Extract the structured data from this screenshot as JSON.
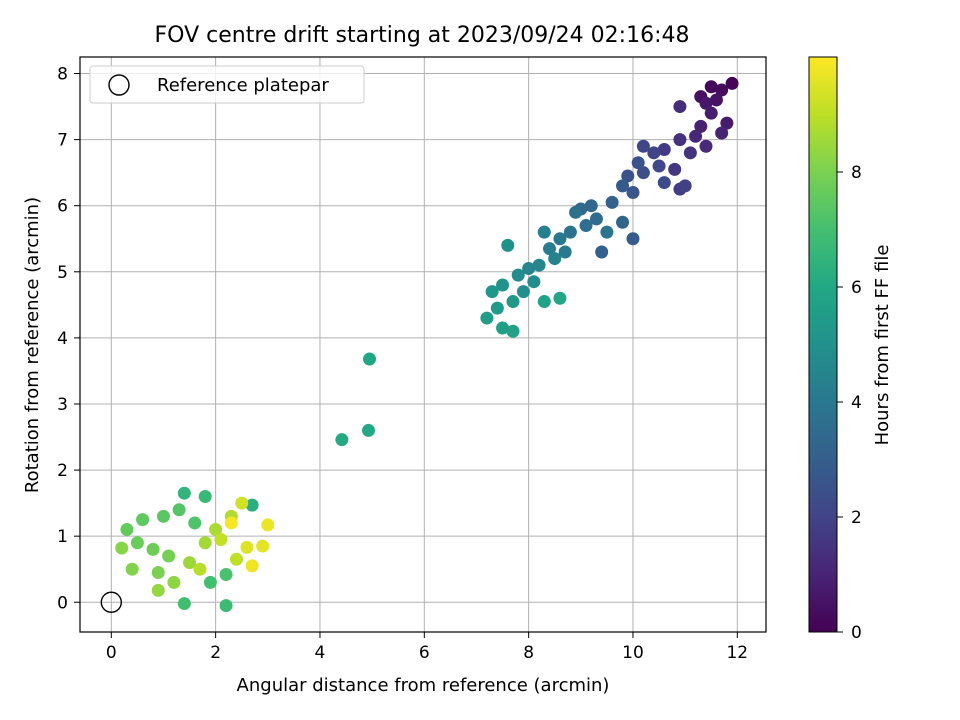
{
  "chart_data": {
    "type": "scatter",
    "title": "FOV centre drift starting at 2023/09/24 02:16:48",
    "xlabel": "Angular distance from reference (arcmin)",
    "ylabel": "Rotation from reference (arcmin)",
    "xlim": [
      -0.6,
      12.55
    ],
    "ylim": [
      -0.45,
      8.25
    ],
    "xticks": [
      0,
      2,
      4,
      6,
      8,
      10,
      12
    ],
    "yticks": [
      0,
      1,
      2,
      3,
      4,
      5,
      6,
      7,
      8
    ],
    "grid": true,
    "legend": {
      "placement": "top-left",
      "entries": [
        "Reference platepar"
      ]
    },
    "reference_point": {
      "x": 0,
      "y": 0
    },
    "colorbar": {
      "label": "Hours from first FF file",
      "range": [
        0,
        10
      ],
      "ticks": [
        0,
        2,
        4,
        6,
        8
      ],
      "colormap": "viridis"
    },
    "series": [
      {
        "points": [
          [
            11.9,
            7.85,
            0.1
          ],
          [
            11.5,
            7.8,
            0.2
          ],
          [
            11.7,
            7.75,
            0.3
          ],
          [
            11.3,
            7.65,
            0.4
          ],
          [
            11.6,
            7.6,
            0.5
          ],
          [
            11.4,
            7.55,
            0.6
          ],
          [
            11.8,
            7.25,
            0.7
          ],
          [
            11.5,
            7.4,
            0.8
          ],
          [
            11.3,
            7.2,
            0.9
          ],
          [
            11.7,
            7.1,
            1.0
          ],
          [
            11.2,
            7.05,
            1.1
          ],
          [
            11.4,
            6.9,
            1.2
          ],
          [
            10.9,
            7.5,
            1.3
          ],
          [
            10.9,
            7.0,
            1.4
          ],
          [
            11.1,
            6.8,
            1.5
          ],
          [
            10.8,
            6.55,
            1.6
          ],
          [
            10.6,
            6.85,
            1.7
          ],
          [
            10.9,
            6.25,
            1.8
          ],
          [
            11.0,
            6.3,
            1.9
          ],
          [
            10.4,
            6.8,
            2.0
          ],
          [
            10.2,
            6.9,
            2.1
          ],
          [
            10.5,
            6.6,
            2.2
          ],
          [
            10.6,
            6.35,
            2.3
          ],
          [
            10.2,
            6.5,
            2.4
          ],
          [
            10.1,
            6.65,
            2.5
          ],
          [
            9.9,
            6.45,
            2.6
          ],
          [
            10.0,
            6.2,
            2.7
          ],
          [
            9.8,
            6.3,
            2.8
          ],
          [
            10.0,
            5.5,
            2.9
          ],
          [
            9.4,
            5.3,
            3.0
          ],
          [
            9.6,
            6.05,
            3.1
          ],
          [
            9.8,
            5.75,
            3.2
          ],
          [
            9.2,
            6.0,
            3.3
          ],
          [
            9.0,
            5.95,
            3.4
          ],
          [
            9.3,
            5.8,
            3.5
          ],
          [
            9.1,
            5.7,
            3.6
          ],
          [
            8.9,
            5.9,
            3.7
          ],
          [
            8.8,
            5.6,
            3.8
          ],
          [
            9.5,
            5.6,
            3.9
          ],
          [
            8.6,
            5.5,
            4.0
          ],
          [
            8.7,
            5.3,
            4.1
          ],
          [
            8.4,
            5.35,
            4.2
          ],
          [
            8.3,
            5.6,
            4.3
          ],
          [
            8.5,
            5.2,
            4.4
          ],
          [
            8.2,
            5.1,
            4.5
          ],
          [
            8.0,
            5.05,
            4.6
          ],
          [
            7.8,
            4.95,
            4.7
          ],
          [
            8.1,
            4.85,
            4.8
          ],
          [
            7.9,
            4.7,
            4.9
          ],
          [
            7.6,
            5.4,
            5.0
          ],
          [
            7.5,
            4.8,
            5.1
          ],
          [
            7.3,
            4.7,
            5.2
          ],
          [
            7.7,
            4.55,
            5.3
          ],
          [
            7.4,
            4.45,
            5.4
          ],
          [
            7.2,
            4.3,
            5.5
          ],
          [
            7.5,
            4.15,
            5.6
          ],
          [
            7.7,
            4.1,
            5.7
          ],
          [
            8.3,
            4.55,
            5.8
          ],
          [
            8.6,
            4.6,
            5.9
          ],
          [
            4.95,
            3.68,
            5.95
          ],
          [
            4.93,
            2.6,
            6.0
          ],
          [
            4.42,
            2.46,
            6.05
          ],
          [
            2.7,
            1.47,
            6.3
          ],
          [
            1.4,
            1.65,
            6.5
          ],
          [
            1.8,
            1.6,
            6.7
          ],
          [
            2.2,
            -0.05,
            6.8
          ],
          [
            1.4,
            -0.02,
            6.9
          ],
          [
            1.9,
            0.3,
            7.0
          ],
          [
            2.2,
            0.42,
            7.1
          ],
          [
            1.6,
            1.2,
            7.2
          ],
          [
            1.3,
            1.4,
            7.3
          ],
          [
            1.0,
            1.3,
            7.4
          ],
          [
            0.6,
            1.25,
            7.5
          ],
          [
            0.3,
            1.1,
            7.6
          ],
          [
            0.5,
            0.9,
            7.7
          ],
          [
            0.8,
            0.8,
            7.8
          ],
          [
            1.1,
            0.7,
            7.9
          ],
          [
            0.9,
            0.45,
            8.0
          ],
          [
            0.4,
            0.5,
            8.1
          ],
          [
            0.2,
            0.82,
            8.2
          ],
          [
            1.2,
            0.3,
            8.3
          ],
          [
            0.9,
            0.18,
            8.4
          ],
          [
            1.5,
            0.6,
            8.5
          ],
          [
            1.8,
            0.9,
            8.6
          ],
          [
            2.0,
            1.1,
            8.7
          ],
          [
            2.3,
            1.3,
            8.8
          ],
          [
            1.7,
            0.5,
            8.9
          ],
          [
            2.4,
            0.65,
            9.0
          ],
          [
            2.1,
            0.95,
            9.1
          ],
          [
            2.5,
            1.5,
            9.3
          ],
          [
            2.6,
            0.83,
            9.5
          ],
          [
            2.9,
            0.85,
            9.6
          ],
          [
            3.0,
            1.17,
            9.7
          ],
          [
            2.7,
            0.55,
            9.8
          ],
          [
            2.3,
            1.2,
            9.9
          ]
        ]
      }
    ]
  }
}
